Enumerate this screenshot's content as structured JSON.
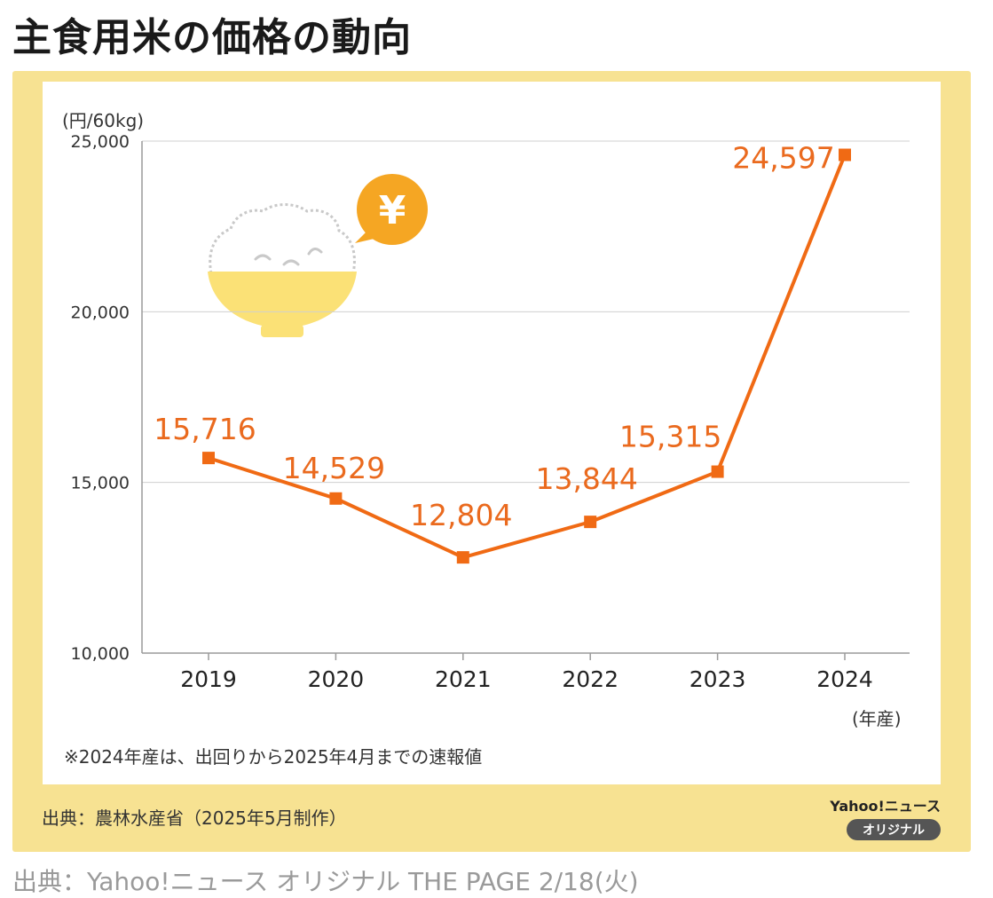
{
  "title": "主食用米の価格の動向",
  "unit_label": "(円/60kg)",
  "year_suffix": "(年産)",
  "footnote": "※2024年産は、出回りから2025年4月までの速報値",
  "source": "出典：農林水産省（2025年5月制作）",
  "brand": {
    "name": "Yahoo!ニュース",
    "badge": "オリジナル"
  },
  "credit": "出典：Yahoo!ニュース オリジナル THE PAGE  2/18(火)",
  "colors": {
    "line": "#f06a14",
    "label": "#ea6a1e",
    "grid": "#cfcfcf",
    "frame": "#f7e292",
    "bowl": "#fbe176",
    "bubble": "#f5a623"
  },
  "icons": [
    "rice-bowl-icon",
    "yen-speech-bubble-icon"
  ],
  "chart_data": {
    "type": "line",
    "title": "主食用米の価格の動向",
    "xlabel": "(年産)",
    "ylabel": "(円/60kg)",
    "categories": [
      "2019",
      "2020",
      "2021",
      "2022",
      "2023",
      "2024"
    ],
    "series": [
      {
        "name": "主食用米の価格",
        "values": [
          15716,
          14529,
          12804,
          13844,
          15315,
          24597
        ]
      }
    ],
    "value_labels": [
      "15,716",
      "14,529",
      "12,804",
      "13,844",
      "15,315",
      "24,597"
    ],
    "ylim": [
      10000,
      25000
    ],
    "yticks": [
      10000,
      15000,
      20000,
      25000
    ],
    "ytick_labels": [
      "10,000",
      "15,000",
      "20,000",
      "25,000"
    ],
    "grid": true
  }
}
